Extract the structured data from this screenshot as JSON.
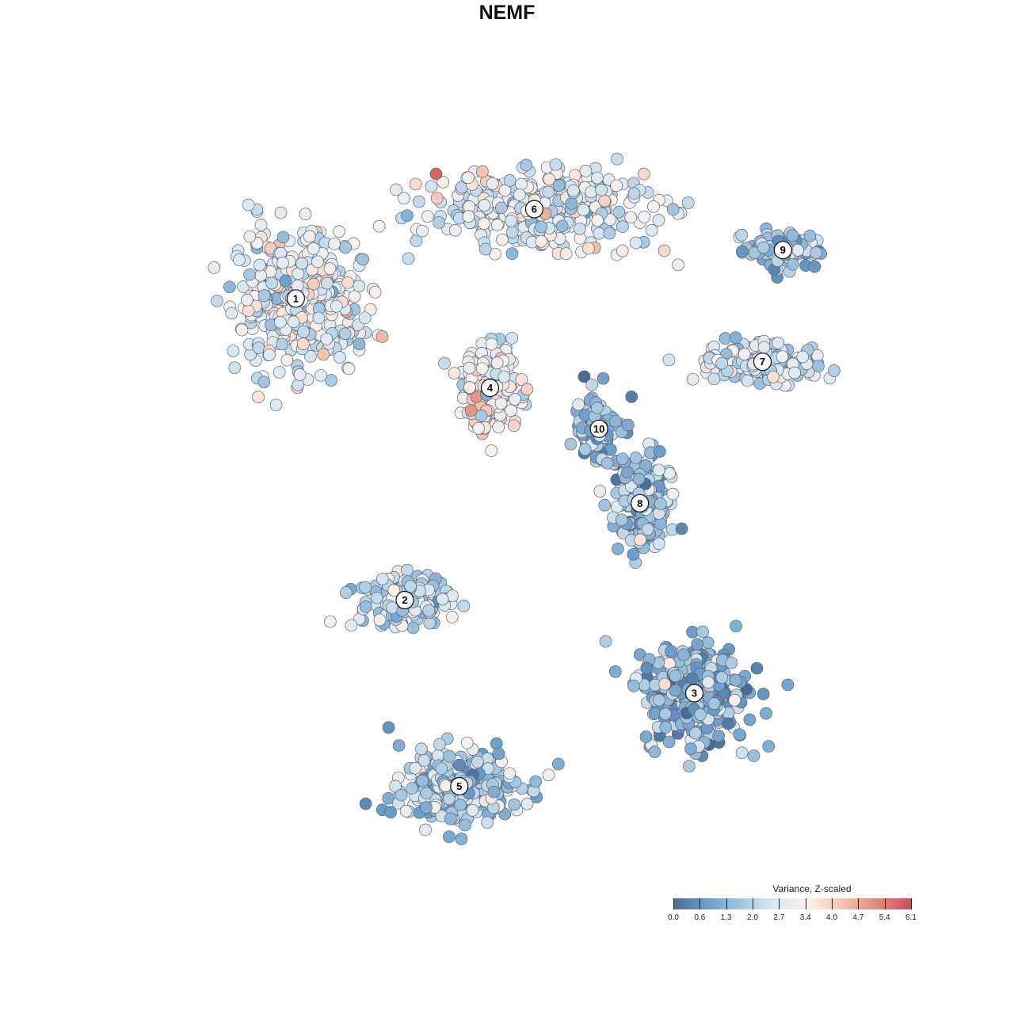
{
  "chart_data": {
    "type": "scatter",
    "title": "NEMF",
    "subtitle": "",
    "xlabel": "",
    "ylabel": "",
    "grid": false,
    "color_scale": {
      "title": "Variance, Z-scaled",
      "min": 0.0,
      "max": 6.1,
      "ticks": [
        "0.0",
        "0.6",
        "1.3",
        "2.0",
        "2.7",
        "3.4",
        "4.0",
        "4.7",
        "5.4",
        "6.1"
      ],
      "colors": [
        "#4a6b96",
        "#6c9dcb",
        "#a4c6df",
        "#dde9f2",
        "#fbf1ec",
        "#f5c2ad",
        "#e08a78",
        "#cc4f5c"
      ]
    },
    "legend_position": "bottom-right",
    "clusters": [
      {
        "label": "1",
        "x": -0.62,
        "y": 0.56,
        "mean_value": 2.8
      },
      {
        "label": "2",
        "x": -0.3,
        "y": -0.25,
        "mean_value": 2.3
      },
      {
        "label": "3",
        "x": 0.55,
        "y": -0.5,
        "mean_value": 1.3
      },
      {
        "label": "4",
        "x": -0.05,
        "y": 0.32,
        "mean_value": 3.3
      },
      {
        "label": "5",
        "x": -0.14,
        "y": -0.75,
        "mean_value": 1.9
      },
      {
        "label": "6",
        "x": 0.08,
        "y": 0.8,
        "mean_value": 2.8
      },
      {
        "label": "7",
        "x": 0.75,
        "y": 0.39,
        "mean_value": 2.5
      },
      {
        "label": "8",
        "x": 0.39,
        "y": 0.01,
        "mean_value": 1.7
      },
      {
        "label": "9",
        "x": 0.81,
        "y": 0.69,
        "mean_value": 1.7
      },
      {
        "label": "10",
        "x": 0.27,
        "y": 0.21,
        "mean_value": 1.5
      }
    ]
  }
}
